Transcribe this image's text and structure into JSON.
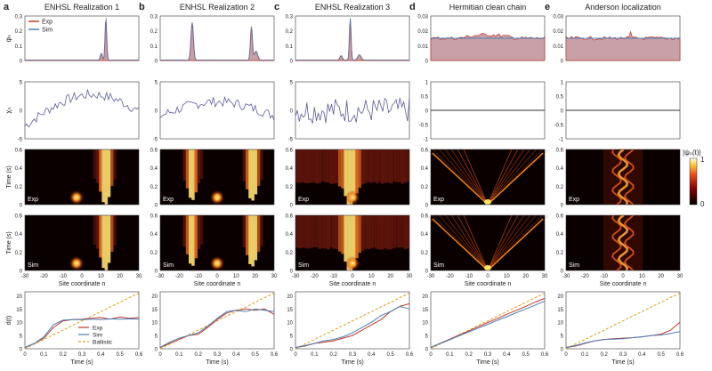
{
  "chart_data": {
    "type": "multi-panel",
    "colors": {
      "exp": "#c0392b",
      "sim": "#4a7fb5",
      "ballistic": "#d4a017",
      "chi": "#5a5a9a",
      "amp_fill": "#c9a0a8"
    },
    "columns": [
      {
        "letter": "a",
        "title": "ENHSL Realization 1",
        "kind": "ensl1"
      },
      {
        "letter": "b",
        "title": "ENHSL Realization 2",
        "kind": "ensl2"
      },
      {
        "letter": "c",
        "title": "ENHSL Realization 3",
        "kind": "ensl3"
      },
      {
        "letter": "d",
        "title": "Hermitian clean chain",
        "kind": "clean"
      },
      {
        "letter": "e",
        "title": "Anderson localization",
        "kind": "anderson"
      }
    ],
    "labels": {
      "psi_ylabel": "φₙ",
      "chi_ylabel": "χₙ",
      "time_ylabel": "Time (s)",
      "site_xlabel": "Site coordinate  n",
      "time_xlabel": "Time (s)",
      "d_ylabel": "d(t)",
      "exp_tag": "Exp",
      "sim_tag": "Sim",
      "colorbar_label": "|ψₙ(t)|",
      "colorbar_max": "1",
      "colorbar_min": "0"
    },
    "legend": [
      "Exp",
      "Sim",
      "Ballistic"
    ],
    "axes": {
      "psi_ticks_ensl": [
        "0",
        "0.1",
        "0.2",
        "0.3"
      ],
      "psi_ticks_flat": [
        "0",
        "0.01",
        "0.02",
        "0.03"
      ],
      "chi_ticks_ensl": [
        "-5",
        "0",
        "5"
      ],
      "chi_ticks_flat": [
        "-1",
        "-0.5",
        "0",
        "0.5",
        "1"
      ],
      "time_ticks": [
        "0",
        "0.2",
        "0.4",
        "0.6"
      ],
      "site_ticks": [
        "-30",
        "-20",
        "-10",
        "0",
        "10",
        "20",
        "30"
      ],
      "t_ticks": [
        "0",
        "0.1",
        "0.2",
        "0.3",
        "0.4",
        "0.5",
        "0.6"
      ],
      "d_ticks": [
        "0",
        "5",
        "10",
        "15",
        "20"
      ]
    },
    "d_series": {
      "t": [
        0,
        0.05,
        0.1,
        0.15,
        0.2,
        0.25,
        0.3,
        0.35,
        0.4,
        0.45,
        0.5,
        0.55,
        0.6
      ],
      "ballistic": [
        0,
        1.8,
        3.5,
        5.3,
        7.0,
        8.8,
        10.5,
        12.3,
        14.0,
        15.8,
        17.5,
        19.3,
        21
      ],
      "ensl1": {
        "exp": [
          0.5,
          2,
          4,
          8,
          10.5,
          11,
          11.2,
          11.5,
          11.8,
          11.2,
          12,
          11.5,
          11.8
        ],
        "sim": [
          0.5,
          2,
          4.5,
          9,
          10.8,
          11,
          11,
          11.2,
          11,
          11.3,
          11.2,
          11.3,
          11.2
        ]
      },
      "ensl2": {
        "exp": [
          0.5,
          2,
          3.5,
          5,
          5.5,
          8,
          11,
          13.5,
          14.5,
          15,
          14.5,
          15,
          13
        ],
        "sim": [
          0.5,
          2.5,
          4,
          5,
          6,
          8.5,
          11.5,
          14,
          14.5,
          14,
          15,
          14.5,
          14
        ]
      },
      "ensl3": {
        "exp": [
          0.5,
          1,
          2,
          2.5,
          3,
          4,
          5,
          7,
          9,
          11,
          14,
          16,
          17
        ],
        "sim": [
          0.5,
          1.2,
          2,
          3,
          3.5,
          4.5,
          6,
          8,
          10,
          12.5,
          14,
          16,
          15
        ]
      },
      "clean": {
        "exp": [
          0.5,
          2.1,
          3.6,
          5.2,
          6.7,
          8.3,
          9.9,
          11.4,
          13,
          14.5,
          16,
          17.6,
          19
        ],
        "sim": [
          0.5,
          2,
          3.4,
          4.9,
          6.3,
          7.8,
          9.2,
          10.7,
          12.1,
          13.6,
          15,
          16.5,
          18
        ]
      },
      "anderson": {
        "exp": [
          0.5,
          1,
          2,
          3,
          3.5,
          3.8,
          4,
          4.2,
          4.5,
          5,
          5.5,
          7,
          10
        ],
        "sim": [
          0.5,
          1.2,
          2.2,
          3,
          3.5,
          3.6,
          3.8,
          4.2,
          4.5,
          5,
          5.2,
          5.8,
          6.5
        ]
      }
    }
  }
}
